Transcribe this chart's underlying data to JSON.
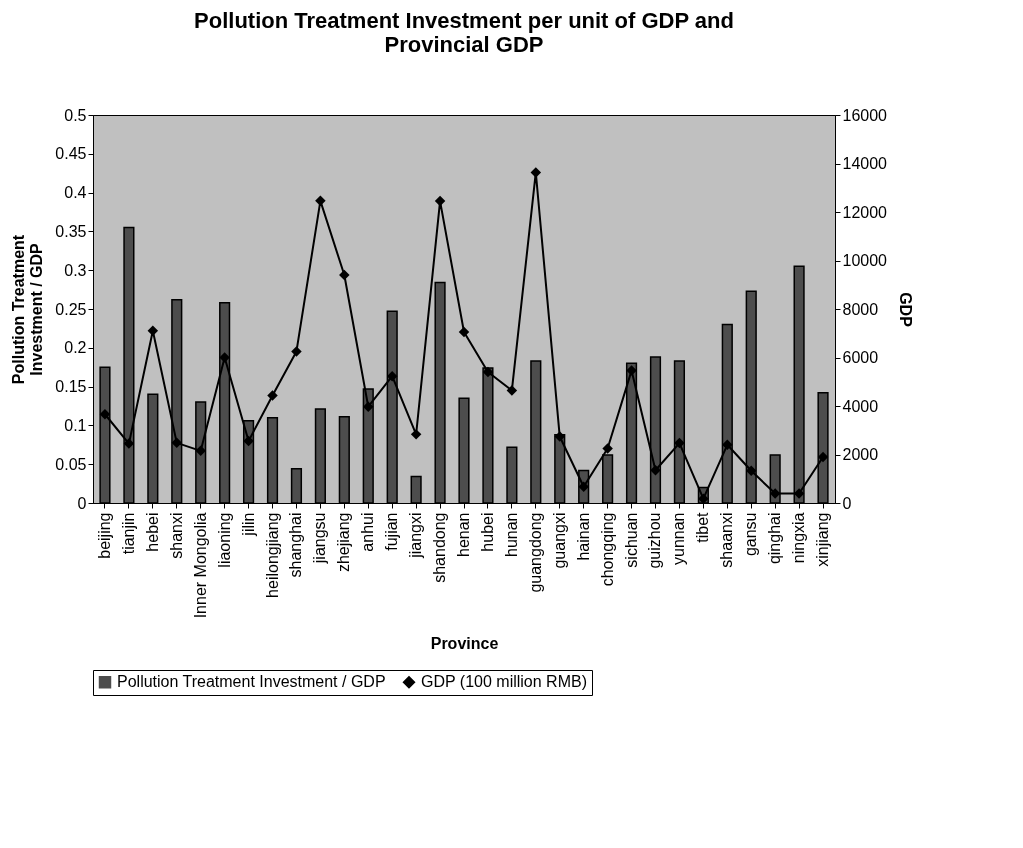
{
  "chart_data": {
    "type": "bar",
    "title": "Pollution Treatment Investment per unit of GDP and Provincial GDP",
    "xlabel": "Province",
    "ylabel": "Pollution Treatment Investment / GDP",
    "y2label": "GDP",
    "categories": [
      "beijing",
      "tianjin",
      "hebei",
      "shanxi",
      "Inner Mongolia",
      "liaoning",
      "jilin",
      "heilongjiang",
      "shanghai",
      "jiangsu",
      "zhejiang",
      "anhui",
      "fujian",
      "jiangxi",
      "shandong",
      "henan",
      "hubei",
      "hunan",
      "guangdong",
      "guangxi",
      "hainan",
      "chongqing",
      "sichuan",
      "guizhou",
      "yunnan",
      "tibet",
      "shaanxi",
      "gansu",
      "qinghai",
      "ningxia",
      "xinjiang"
    ],
    "series": [
      {
        "name": "Pollution Treatment Investment / GDP",
        "color": "#4d4d4d",
        "values": [
          0.175,
          0.355,
          0.14,
          0.262,
          0.13,
          0.258,
          0.106,
          0.11,
          0.044,
          0.121,
          0.111,
          0.147,
          0.247,
          0.034,
          0.284,
          0.135,
          0.174,
          0.072,
          0.183,
          0.088,
          0.042,
          0.062,
          0.18,
          0.188,
          0.183,
          0.02,
          0.23,
          0.273,
          0.062,
          0.305,
          0.142
        ]
      },
      {
        "name": "GDP (100 million RMB)",
        "type": "line",
        "axis": "y2",
        "color": "#000000",
        "values": [
          3660,
          2450,
          7100,
          2480,
          2150,
          6000,
          2560,
          4430,
          6250,
          12460,
          9400,
          3970,
          5230,
          2830,
          12450,
          7050,
          5400,
          4640,
          13630,
          2740,
          670,
          2250,
          5460,
          1350,
          2470,
          180,
          2400,
          1330,
          390,
          390,
          1900
        ]
      }
    ],
    "ylim": [
      0,
      0.5
    ],
    "yticks": [
      0,
      0.05,
      0.1,
      0.15,
      0.2,
      0.25,
      0.3,
      0.35,
      0.4,
      0.45,
      0.5
    ],
    "y2lim": [
      0,
      16000
    ],
    "y2ticks": [
      0,
      2000,
      4000,
      6000,
      8000,
      10000,
      12000,
      14000,
      16000
    ],
    "grid": false,
    "legend": "bottom",
    "marker": "diamond",
    "line_style": "solid"
  }
}
